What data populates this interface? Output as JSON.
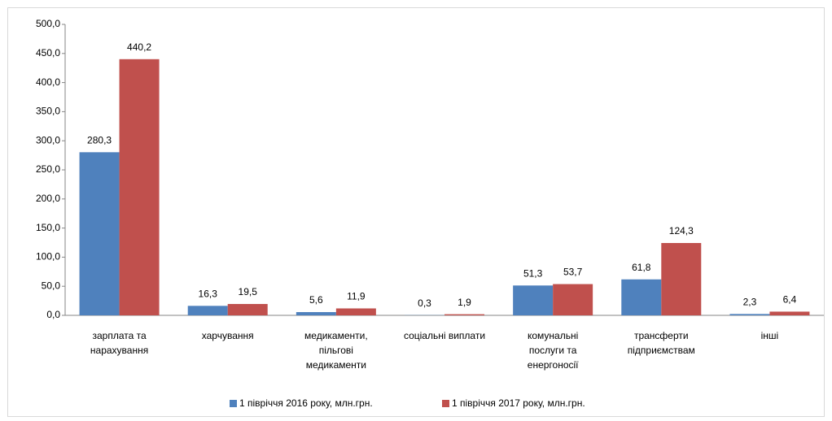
{
  "chart_data": {
    "type": "bar",
    "categories": [
      "зарплата та\nнарахування",
      "харчування",
      "медикаменти,\nпільгові\nмедикаменти",
      "соціальні виплати",
      "комунальні\nпослуги та\nенергоносії",
      "трансферти\nпідприємствам",
      "інші"
    ],
    "series": [
      {
        "name": "1 півріччя 2016 року, млн.грн.",
        "color": "#4f81bd",
        "values": [
          280.3,
          16.3,
          5.6,
          0.3,
          51.3,
          61.8,
          2.3
        ],
        "value_labels": [
          "280,3",
          "16,3",
          "5,6",
          "0,3",
          "51,3",
          "61,8",
          "2,3"
        ]
      },
      {
        "name": "1 півріччя 2017 року, млн.грн.",
        "color": "#c0504d",
        "values": [
          440.2,
          19.5,
          11.9,
          1.9,
          53.7,
          124.3,
          6.4
        ],
        "value_labels": [
          "440,2",
          "19,5",
          "11,9",
          "1,9",
          "53,7",
          "124,3",
          "6,4"
        ]
      }
    ],
    "ylim": [
      0,
      500
    ],
    "yticks": [
      {
        "value": 0,
        "label": "0,0"
      },
      {
        "value": 50,
        "label": "50,0"
      },
      {
        "value": 100,
        "label": "100,0"
      },
      {
        "value": 150,
        "label": "150,0"
      },
      {
        "value": 200,
        "label": "200,0"
      },
      {
        "value": 250,
        "label": "250,0"
      },
      {
        "value": 300,
        "label": "300,0"
      },
      {
        "value": 350,
        "label": "350,0"
      },
      {
        "value": 400,
        "label": "400,0"
      },
      {
        "value": 450,
        "label": "450,0"
      },
      {
        "value": 500,
        "label": "500,0"
      }
    ],
    "legend": "bottom"
  }
}
